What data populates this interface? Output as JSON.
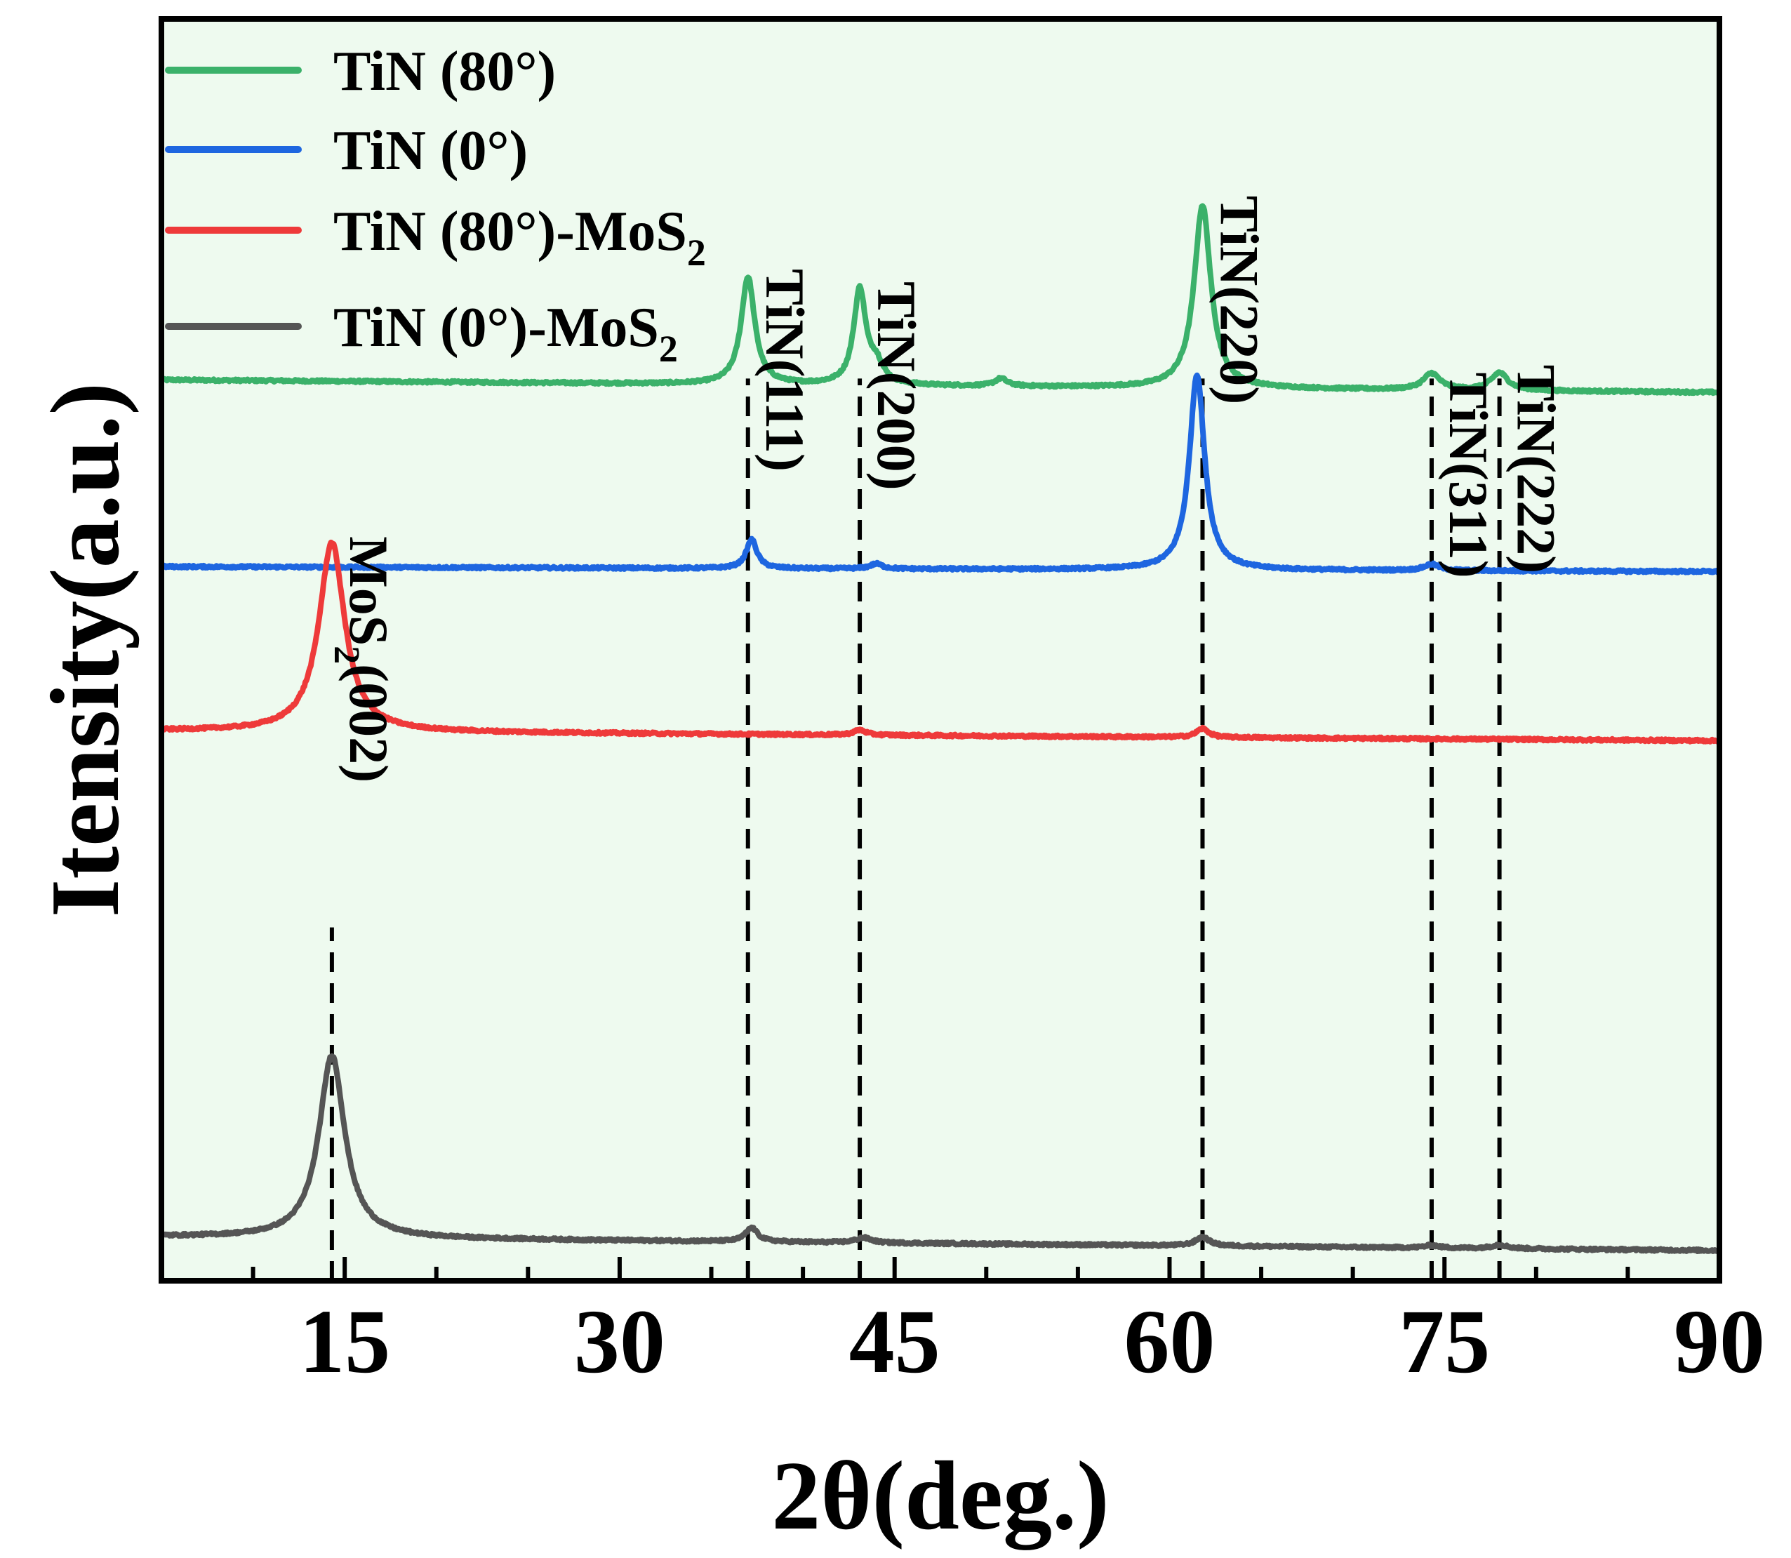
{
  "chart_data": {
    "type": "line",
    "xlabel": "2θ(deg.)",
    "ylabel": "Itensity(a.u.)",
    "xlim": [
      5,
      90
    ],
    "ylim": [
      0,
      100
    ],
    "x_ticks": [
      15,
      30,
      45,
      60,
      75,
      90
    ],
    "x_tick_labels": [
      "15",
      "30",
      "45",
      "60",
      "75",
      "90"
    ],
    "grid": false,
    "legend_position": "top-left",
    "background": "#eefaef",
    "series": [
      {
        "name": "TiN (80°)",
        "legend_label": "TiN (80°)",
        "color": "#3bb16a",
        "baseline": [
          [
            5,
            71.4
          ],
          [
            90,
            70.4
          ]
        ],
        "peaks": [
          {
            "x": 37.0,
            "height": 8.5,
            "width": 0.45
          },
          {
            "x": 43.1,
            "height": 7.5,
            "width": 0.4
          },
          {
            "x": 44.0,
            "height": 1.5,
            "width": 0.45
          },
          {
            "x": 50.8,
            "height": 0.6,
            "width": 0.4
          },
          {
            "x": 61.8,
            "height": 14.5,
            "width": 0.55
          },
          {
            "x": 74.3,
            "height": 1.3,
            "width": 0.55
          },
          {
            "x": 78.0,
            "height": 1.4,
            "width": 0.55
          }
        ]
      },
      {
        "name": "TiN (0°)",
        "legend_label": "TiN (0°)",
        "color": "#1e66e0",
        "baseline": [
          [
            5,
            56.6
          ],
          [
            90,
            56.2
          ]
        ],
        "peaks": [
          {
            "x": 37.2,
            "height": 2.3,
            "width": 0.35
          },
          {
            "x": 44.0,
            "height": 0.4,
            "width": 0.4
          },
          {
            "x": 61.5,
            "height": 15.5,
            "width": 0.5
          },
          {
            "x": 74.3,
            "height": 0.5,
            "width": 0.5
          }
        ]
      },
      {
        "name": "TiN (80°)-MoS2",
        "legend_label_main": "TiN (80°)-MoS",
        "legend_label_sub": "2",
        "color": "#ee3a3a",
        "baseline": [
          [
            5,
            43.6
          ],
          [
            90,
            42.8
          ]
        ],
        "peaks": [
          {
            "x": 14.3,
            "height": 15.0,
            "width": 0.85
          },
          {
            "x": 43.1,
            "height": 0.4,
            "width": 0.4
          },
          {
            "x": 61.8,
            "height": 0.7,
            "width": 0.4
          }
        ]
      },
      {
        "name": "TiN (0°)-MoS2",
        "legend_label_main": "TiN (0°)-MoS",
        "legend_label_sub": "2",
        "color": "#555555",
        "baseline": [
          [
            5,
            3.5
          ],
          [
            90,
            2.4
          ]
        ],
        "peaks": [
          {
            "x": 14.3,
            "height": 14.5,
            "width": 0.85
          },
          {
            "x": 37.2,
            "height": 1.1,
            "width": 0.4
          },
          {
            "x": 43.3,
            "height": 0.4,
            "width": 0.5
          },
          {
            "x": 61.8,
            "height": 0.7,
            "width": 0.45
          },
          {
            "x": 74.3,
            "height": 0.2,
            "width": 0.5
          },
          {
            "x": 78.0,
            "height": 0.3,
            "width": 0.5
          }
        ]
      }
    ],
    "peak_labels": [
      {
        "text_main": "MoS",
        "text_sub": "2",
        "text_tail": "(002)",
        "x": 14.3,
        "y_top": 28.0,
        "y_label_top": 59.0
      },
      {
        "text_main": "TiN(111)",
        "x": 37.0,
        "y_top": 0.0,
        "y_label_top": 80.2
      },
      {
        "text_main": "TiN(200)",
        "x": 43.1,
        "y_top": 0.0,
        "y_label_top": 79.2
      },
      {
        "text_main": "TiN(220)",
        "x": 61.8,
        "y_top": 0.0,
        "y_label_top": 86.0
      },
      {
        "text_main": "TiN(311)",
        "x": 74.3,
        "y_top": 0.0,
        "y_label_top": 72.0
      },
      {
        "text_main": "TiN(222)",
        "x": 78.0,
        "y_top": 0.0,
        "y_label_top": 72.6
      }
    ]
  }
}
